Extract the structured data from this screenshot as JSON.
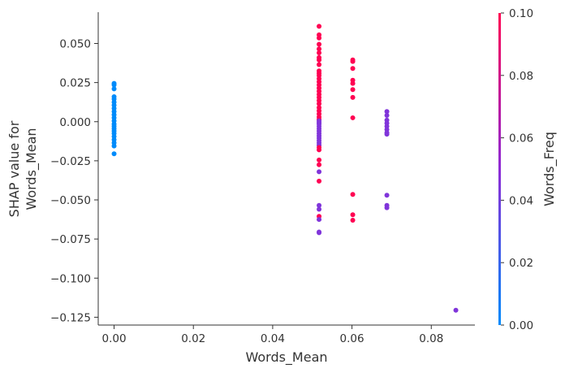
{
  "chart_data": {
    "type": "scatter",
    "title": "",
    "xlabel": "Words_Mean",
    "ylabel_lines": [
      "SHAP value for",
      "Words_Mean"
    ],
    "xlim": [
      -0.004,
      0.091
    ],
    "ylim": [
      -0.13,
      0.07
    ],
    "xticks": [
      0.0,
      0.02,
      0.04,
      0.06,
      0.08
    ],
    "xtick_labels": [
      "0.00",
      "0.02",
      "0.04",
      "0.06",
      "0.08"
    ],
    "yticks": [
      0.05,
      0.025,
      0.0,
      -0.025,
      -0.05,
      -0.075,
      -0.1,
      -0.125
    ],
    "ytick_labels": [
      "0.050",
      "0.025",
      "0.000",
      "−0.025",
      "−0.050",
      "−0.075",
      "−0.100",
      "−0.125"
    ],
    "grid": false,
    "colorbar": {
      "label": "Words_Freq",
      "range": [
        0.0,
        0.1
      ],
      "ticks": [
        0.0,
        0.02,
        0.04,
        0.06,
        0.08,
        0.1
      ],
      "tick_labels": [
        "0.00",
        "0.02",
        "0.04",
        "0.06",
        "0.08",
        "0.10"
      ],
      "color_low": "#008bfb",
      "color_mid": "#8e2bd6",
      "color_high": "#ff0052"
    },
    "points": [
      {
        "x": 0.0,
        "y": 0.0245,
        "c": 0.0
      },
      {
        "x": 0.0,
        "y": 0.0235,
        "c": 0.0
      },
      {
        "x": 0.0,
        "y": 0.021,
        "c": 0.0
      },
      {
        "x": 0.0,
        "y": 0.016,
        "c": 0.0
      },
      {
        "x": 0.0,
        "y": 0.0145,
        "c": 0.0
      },
      {
        "x": 0.0,
        "y": 0.0125,
        "c": 0.0
      },
      {
        "x": 0.0,
        "y": 0.0105,
        "c": 0.0
      },
      {
        "x": 0.0,
        "y": 0.0085,
        "c": 0.0
      },
      {
        "x": 0.0,
        "y": 0.0065,
        "c": 0.0
      },
      {
        "x": 0.0,
        "y": 0.0045,
        "c": 0.0
      },
      {
        "x": 0.0,
        "y": 0.0025,
        "c": 0.0
      },
      {
        "x": 0.0,
        "y": 0.0005,
        "c": 0.0
      },
      {
        "x": 0.0,
        "y": -0.0015,
        "c": 0.0
      },
      {
        "x": 0.0,
        "y": -0.003,
        "c": 0.0
      },
      {
        "x": 0.0,
        "y": -0.0045,
        "c": 0.0
      },
      {
        "x": 0.0,
        "y": -0.006,
        "c": 0.0
      },
      {
        "x": 0.0,
        "y": -0.0075,
        "c": 0.0
      },
      {
        "x": 0.0,
        "y": -0.0095,
        "c": 0.0
      },
      {
        "x": 0.0,
        "y": -0.0115,
        "c": 0.0
      },
      {
        "x": 0.0,
        "y": -0.0135,
        "c": 0.0
      },
      {
        "x": 0.0,
        "y": -0.0155,
        "c": 0.0
      },
      {
        "x": 0.0,
        "y": -0.0205,
        "c": 0.0
      },
      {
        "x": 0.0517,
        "y": 0.061,
        "c": 0.1
      },
      {
        "x": 0.0517,
        "y": 0.0555,
        "c": 0.1
      },
      {
        "x": 0.0517,
        "y": 0.0535,
        "c": 0.1
      },
      {
        "x": 0.0517,
        "y": 0.0495,
        "c": 0.1
      },
      {
        "x": 0.0517,
        "y": 0.0465,
        "c": 0.1
      },
      {
        "x": 0.0517,
        "y": 0.044,
        "c": 0.1
      },
      {
        "x": 0.0517,
        "y": 0.041,
        "c": 0.1
      },
      {
        "x": 0.0517,
        "y": 0.0395,
        "c": 0.1
      },
      {
        "x": 0.0517,
        "y": 0.0365,
        "c": 0.1
      },
      {
        "x": 0.0517,
        "y": 0.0325,
        "c": 0.1
      },
      {
        "x": 0.0517,
        "y": 0.031,
        "c": 0.1
      },
      {
        "x": 0.0517,
        "y": 0.0295,
        "c": 0.1
      },
      {
        "x": 0.0517,
        "y": 0.0275,
        "c": 0.1
      },
      {
        "x": 0.0517,
        "y": 0.0255,
        "c": 0.1
      },
      {
        "x": 0.0517,
        "y": 0.0235,
        "c": 0.1
      },
      {
        "x": 0.0517,
        "y": 0.0215,
        "c": 0.1
      },
      {
        "x": 0.0517,
        "y": 0.0195,
        "c": 0.1
      },
      {
        "x": 0.0517,
        "y": 0.0175,
        "c": 0.1
      },
      {
        "x": 0.0517,
        "y": 0.0155,
        "c": 0.1
      },
      {
        "x": 0.0517,
        "y": 0.0135,
        "c": 0.1
      },
      {
        "x": 0.0517,
        "y": 0.0115,
        "c": 0.1
      },
      {
        "x": 0.0517,
        "y": 0.009,
        "c": 0.1
      },
      {
        "x": 0.0517,
        "y": 0.007,
        "c": 0.1
      },
      {
        "x": 0.0517,
        "y": 0.005,
        "c": 0.1
      },
      {
        "x": 0.0517,
        "y": 0.003,
        "c": 0.1
      },
      {
        "x": 0.0517,
        "y": 0.0015,
        "c": 0.1
      },
      {
        "x": 0.0517,
        "y": 0.0005,
        "c": 0.045
      },
      {
        "x": 0.0517,
        "y": -0.0005,
        "c": 0.045
      },
      {
        "x": 0.0517,
        "y": -0.0015,
        "c": 0.045
      },
      {
        "x": 0.0517,
        "y": -0.003,
        "c": 0.045
      },
      {
        "x": 0.0517,
        "y": -0.0045,
        "c": 0.045
      },
      {
        "x": 0.0517,
        "y": -0.006,
        "c": 0.045
      },
      {
        "x": 0.0517,
        "y": -0.0075,
        "c": 0.045
      },
      {
        "x": 0.0517,
        "y": -0.009,
        "c": 0.045
      },
      {
        "x": 0.0517,
        "y": -0.0105,
        "c": 0.045
      },
      {
        "x": 0.0517,
        "y": -0.012,
        "c": 0.045
      },
      {
        "x": 0.0517,
        "y": -0.0135,
        "c": 0.045
      },
      {
        "x": 0.0517,
        "y": -0.015,
        "c": 0.045
      },
      {
        "x": 0.0517,
        "y": -0.0165,
        "c": 0.1
      },
      {
        "x": 0.0517,
        "y": -0.018,
        "c": 0.1
      },
      {
        "x": 0.0517,
        "y": -0.0245,
        "c": 0.1
      },
      {
        "x": 0.0517,
        "y": -0.0275,
        "c": 0.1
      },
      {
        "x": 0.0517,
        "y": -0.032,
        "c": 0.045
      },
      {
        "x": 0.0517,
        "y": -0.038,
        "c": 0.1
      },
      {
        "x": 0.0517,
        "y": -0.0535,
        "c": 0.045
      },
      {
        "x": 0.0517,
        "y": -0.056,
        "c": 0.045
      },
      {
        "x": 0.0517,
        "y": -0.0605,
        "c": 0.1
      },
      {
        "x": 0.0517,
        "y": -0.0625,
        "c": 0.045
      },
      {
        "x": 0.0517,
        "y": -0.0705,
        "c": 0.045
      },
      {
        "x": 0.0517,
        "y": -0.071,
        "c": 0.045
      },
      {
        "x": 0.0602,
        "y": 0.0395,
        "c": 0.1
      },
      {
        "x": 0.0602,
        "y": 0.0385,
        "c": 0.1
      },
      {
        "x": 0.0602,
        "y": 0.034,
        "c": 0.1
      },
      {
        "x": 0.0602,
        "y": 0.0265,
        "c": 0.1
      },
      {
        "x": 0.0602,
        "y": 0.0245,
        "c": 0.1
      },
      {
        "x": 0.0602,
        "y": 0.0205,
        "c": 0.1
      },
      {
        "x": 0.0602,
        "y": 0.0155,
        "c": 0.1
      },
      {
        "x": 0.0602,
        "y": 0.0025,
        "c": 0.1
      },
      {
        "x": 0.0602,
        "y": -0.0465,
        "c": 0.1
      },
      {
        "x": 0.0602,
        "y": -0.0595,
        "c": 0.1
      },
      {
        "x": 0.0602,
        "y": -0.063,
        "c": 0.1
      },
      {
        "x": 0.0688,
        "y": 0.0065,
        "c": 0.045
      },
      {
        "x": 0.0688,
        "y": 0.004,
        "c": 0.045
      },
      {
        "x": 0.0688,
        "y": 0.001,
        "c": 0.045
      },
      {
        "x": 0.0688,
        "y": -0.001,
        "c": 0.045
      },
      {
        "x": 0.0688,
        "y": -0.003,
        "c": 0.045
      },
      {
        "x": 0.0688,
        "y": -0.005,
        "c": 0.045
      },
      {
        "x": 0.0688,
        "y": -0.007,
        "c": 0.045
      },
      {
        "x": 0.0688,
        "y": -0.008,
        "c": 0.045
      },
      {
        "x": 0.0688,
        "y": -0.047,
        "c": 0.045
      },
      {
        "x": 0.0688,
        "y": -0.0535,
        "c": 0.045
      },
      {
        "x": 0.0688,
        "y": -0.055,
        "c": 0.045
      },
      {
        "x": 0.0862,
        "y": -0.1205,
        "c": 0.045
      }
    ]
  }
}
